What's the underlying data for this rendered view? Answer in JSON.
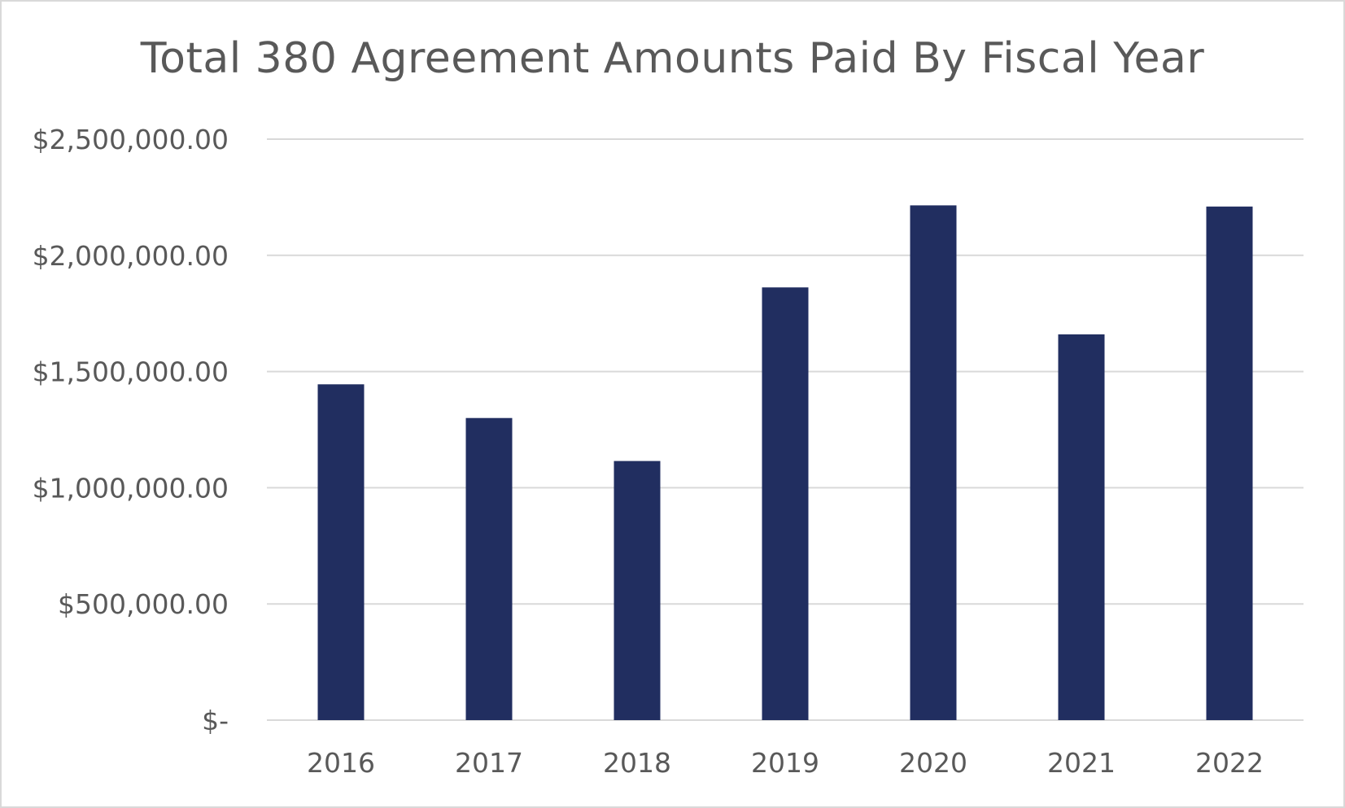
{
  "chart_data": {
    "type": "bar",
    "title": "Total 380 Agreement Amounts Paid By Fiscal Year",
    "xlabel": "",
    "ylabel": "",
    "categories": [
      "2016",
      "2017",
      "2018",
      "2019",
      "2020",
      "2021",
      "2022"
    ],
    "values": [
      1445000,
      1300000,
      1115000,
      1862000,
      2215000,
      1660000,
      2210000
    ],
    "ylim": [
      0,
      2500000
    ],
    "yticks": [
      0,
      500000,
      1000000,
      1500000,
      2000000,
      2500000
    ],
    "ytick_labels": [
      "$-",
      "$500,000.00",
      "$1,000,000.00",
      "$1,500,000.00",
      "$2,000,000.00",
      "$2,500,000.00"
    ],
    "grid": true,
    "legend": "none",
    "bar_color": "#212e60",
    "grid_color": "#d9d9d9",
    "text_color": "#595959"
  }
}
